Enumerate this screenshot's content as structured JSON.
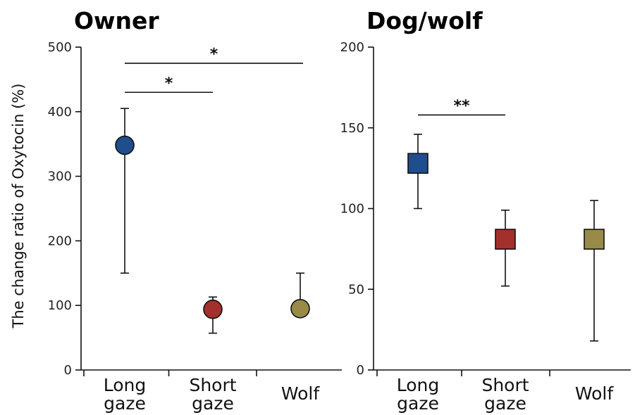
{
  "chart_data": [
    {
      "type": "scatter",
      "title": "Owner",
      "ylabel": "The change ratio of Oxytocin (%)",
      "ylim": [
        0,
        500
      ],
      "yticks": [
        0,
        100,
        200,
        300,
        400,
        500
      ],
      "categories": [
        [
          "Long",
          "gaze"
        ],
        [
          "Short",
          "gaze"
        ],
        [
          "Wolf"
        ]
      ],
      "marker": "circle",
      "points": [
        {
          "category": "Long gaze",
          "value": 348,
          "upper": 405,
          "lower": 150,
          "color": "#1f4e8c"
        },
        {
          "category": "Short gaze",
          "value": 94,
          "upper": 113,
          "lower": 57,
          "color": "#a3302c"
        },
        {
          "category": "Wolf",
          "value": 95,
          "upper": 150,
          "lower": 95,
          "color": "#9a8a48"
        }
      ],
      "significance": [
        {
          "from": 0,
          "to": 1,
          "y": 430,
          "label": "*"
        },
        {
          "from": 0,
          "to": 2,
          "y": 475,
          "label": "*"
        }
      ]
    },
    {
      "type": "scatter",
      "title": "Dog/wolf",
      "ylabel": "",
      "ylim": [
        0,
        200
      ],
      "yticks": [
        0,
        50,
        100,
        150,
        200
      ],
      "categories": [
        [
          "Long",
          "gaze"
        ],
        [
          "Short",
          "gaze"
        ],
        [
          "Wolf"
        ]
      ],
      "marker": "square",
      "points": [
        {
          "category": "Long gaze",
          "value": 128,
          "upper": 146,
          "lower": 100,
          "color": "#1f4e8c"
        },
        {
          "category": "Short gaze",
          "value": 81,
          "upper": 99,
          "lower": 52,
          "color": "#a3302c"
        },
        {
          "category": "Wolf",
          "value": 81,
          "upper": 105,
          "lower": 18,
          "color": "#9a8a48"
        }
      ],
      "significance": [
        {
          "from": 0,
          "to": 1,
          "y": 158,
          "label": "**"
        }
      ]
    }
  ]
}
